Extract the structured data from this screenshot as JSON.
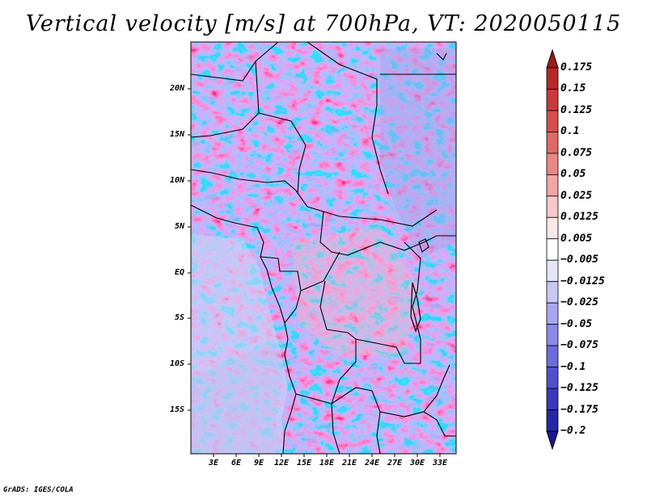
{
  "title": "Vertical velocity [m/s] at 700hPa, VT: 2020050115",
  "credit": "GrADS: IGES/COLA",
  "latitude_labels": [
    "20N",
    "15N",
    "10N",
    "5N",
    "EQ",
    "5S",
    "10S",
    "15S"
  ],
  "longitude_labels": [
    "3E",
    "6E",
    "9E",
    "12E",
    "15E",
    "18E",
    "21E",
    "24E",
    "27E",
    "30E",
    "33E"
  ],
  "colorbar": {
    "levels": [
      "0.175",
      "0.15",
      "0.125",
      "0.1",
      "0.075",
      "0.05",
      "0.025",
      "0.0125",
      "0.005",
      "−0.005",
      "−0.0125",
      "−0.025",
      "−0.05",
      "−0.075",
      "−0.1",
      "−0.125",
      "−0.175",
      "−0.2"
    ],
    "colors": [
      "#a01818",
      "#b82828",
      "#c83a3a",
      "#d64e4e",
      "#e06868",
      "#ea8686",
      "#f2a6a6",
      "#f8c8c8",
      "#fce6e6",
      "#ffffff",
      "#e4e4fa",
      "#c8c8f6",
      "#a8a8f0",
      "#8a8ae8",
      "#6c6cdc",
      "#5050cc",
      "#3a3ab8",
      "#2626a4",
      "#1c1690"
    ]
  },
  "map": {
    "ocean_tint": "#d7d9f6",
    "land_tint": "#e9d4ea"
  }
}
